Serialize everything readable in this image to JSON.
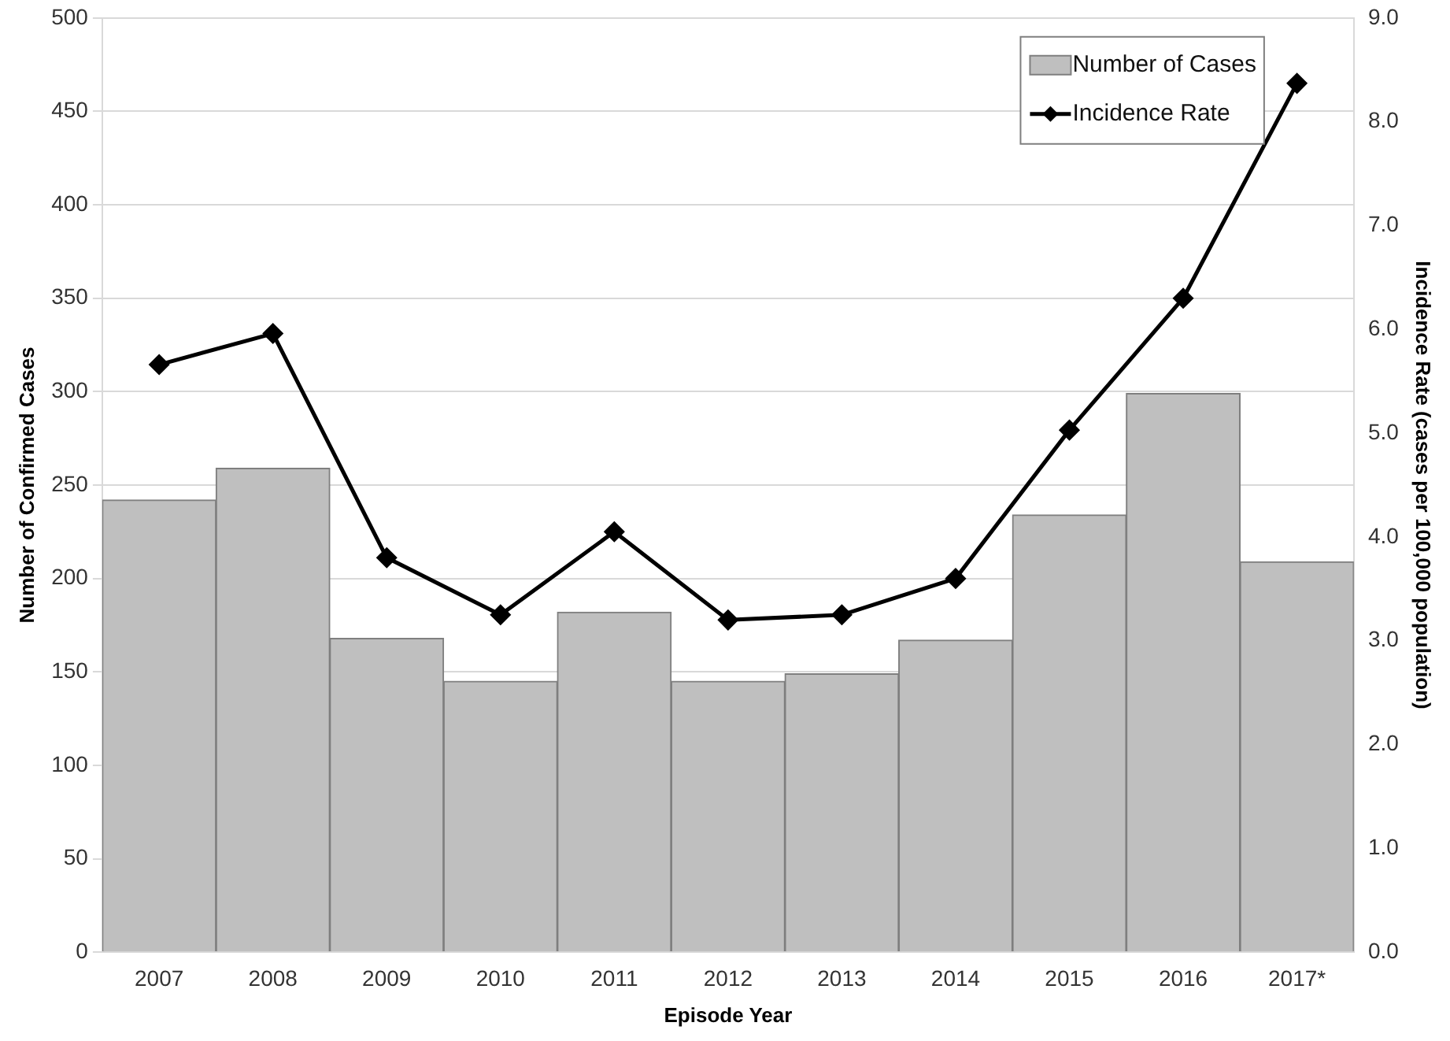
{
  "chart_data": {
    "type": "bar",
    "xlabel": "Episode Year",
    "ylabel": "Number of Confirmed Cases",
    "y2label": "Incidence Rate (cases per 100,000 population)",
    "categories": [
      "2007",
      "2008",
      "2009",
      "2010",
      "2011",
      "2012",
      "2013",
      "2014",
      "2015",
      "2016",
      "2017*"
    ],
    "series": [
      {
        "name": "Number of Cases",
        "color": "#bfbfbf",
        "values": [
          242,
          259,
          168,
          145,
          182,
          145,
          149,
          167,
          234,
          299,
          209
        ]
      },
      {
        "name": "Incidence Rate",
        "type": "line",
        "axis": "y2",
        "color": "#000000",
        "marker": "diamond",
        "values": [
          5.66,
          5.96,
          3.8,
          3.25,
          4.05,
          3.2,
          3.25,
          3.6,
          5.03,
          6.3,
          8.37
        ]
      }
    ],
    "ylim": [
      0,
      500
    ],
    "yticks": [
      0,
      50,
      100,
      150,
      200,
      250,
      300,
      350,
      400,
      450,
      500
    ],
    "y2lim": [
      0,
      9
    ],
    "y2ticks": [
      {
        "value": 0,
        "label": "0.0"
      },
      {
        "value": 1,
        "label": "1.0"
      },
      {
        "value": 2,
        "label": "2.0"
      },
      {
        "value": 3,
        "label": "3.0"
      },
      {
        "value": 4,
        "label": "4.0"
      },
      {
        "value": 5,
        "label": "5.0"
      },
      {
        "value": 6,
        "label": "6.0"
      },
      {
        "value": 7,
        "label": "7.0"
      },
      {
        "value": 8,
        "label": "8.0"
      },
      {
        "value": 9,
        "label": "9.0"
      }
    ],
    "grid": "y",
    "legend": "top right"
  }
}
